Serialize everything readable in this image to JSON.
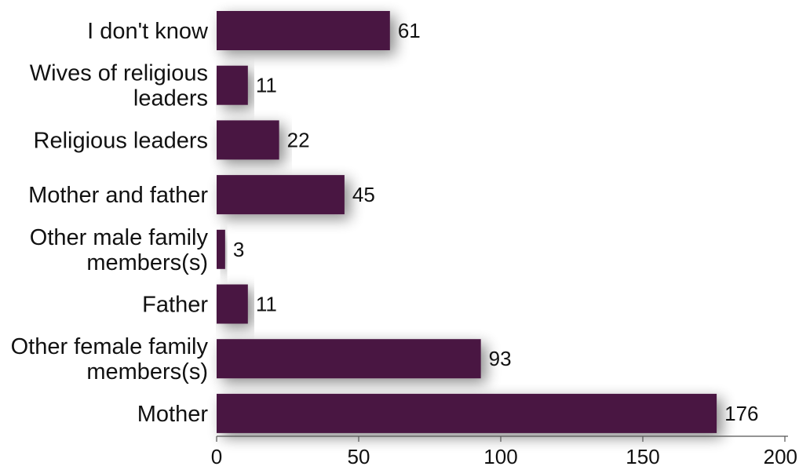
{
  "chart_data": {
    "type": "bar",
    "orientation": "horizontal",
    "categories": [
      "I don't know",
      "Wives of religious leaders",
      "Religious leaders",
      "Mother and father",
      "Other male family members(s)",
      "Father",
      "Other female family members(s)",
      "Mother"
    ],
    "category_lines": [
      [
        "I don't know"
      ],
      [
        "Wives of religious",
        "leaders"
      ],
      [
        "Religious leaders"
      ],
      [
        "Mother and father"
      ],
      [
        "Other male family",
        "members(s)"
      ],
      [
        "Father"
      ],
      [
        "Other female family",
        "members(s)"
      ],
      [
        "Mother"
      ]
    ],
    "values": [
      61,
      11,
      22,
      45,
      3,
      11,
      93,
      176
    ],
    "data_labels": [
      "61",
      "11",
      "22",
      "45",
      "3",
      "11",
      "93",
      "176"
    ],
    "xlim": [
      0,
      200
    ],
    "xticks": [
      0,
      50,
      100,
      150,
      200
    ],
    "xtick_labels": [
      "0",
      "50",
      "100",
      "150",
      "200"
    ],
    "title": "",
    "xlabel": "",
    "ylabel": "",
    "grid": false,
    "legend": "none",
    "bar_color": "#4a1942",
    "bar_shadow": true
  }
}
